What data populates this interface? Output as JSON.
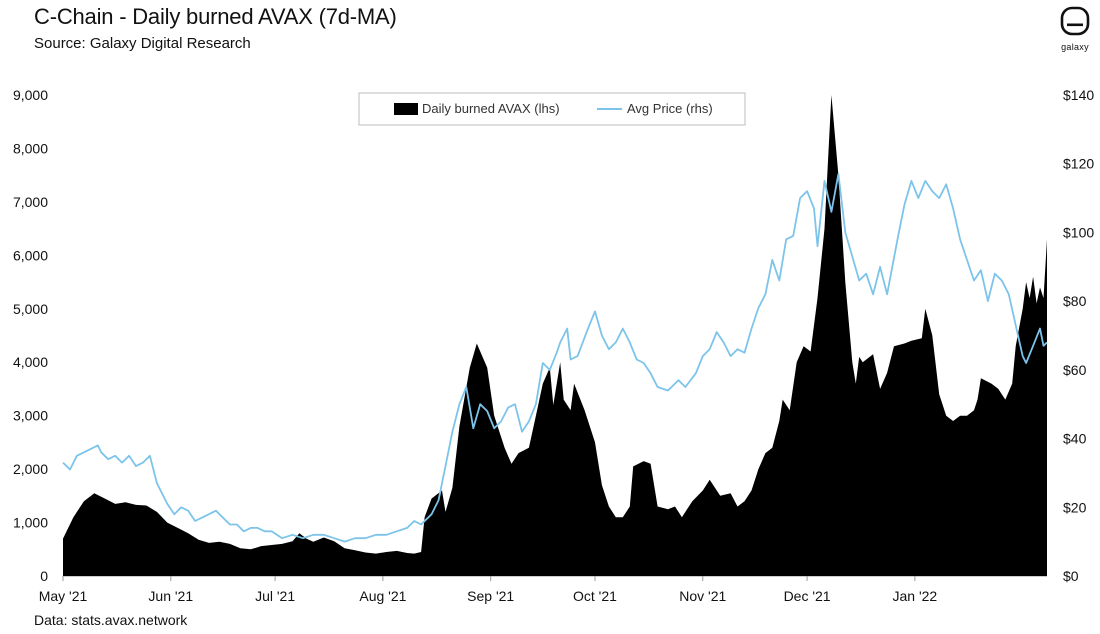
{
  "header": {
    "title": "C-Chain - Daily burned AVAX (7d-MA)",
    "subtitle": "Source: Galaxy Digital Research",
    "footer_source": "Data: stats.avax.network",
    "logo_label": "galaxy"
  },
  "colors": {
    "burned": "#000000",
    "price": "#7cc4ea",
    "axis": "#999999"
  },
  "chart_data": {
    "type": "area+line",
    "title": "C-Chain - Daily burned AVAX (7d-MA)",
    "x_range": [
      "2021-05-01",
      "2022-02-08"
    ],
    "x_ticks": [
      {
        "date": "2021-05-01",
        "label": "May '21"
      },
      {
        "date": "2021-06-01",
        "label": "Jun '21"
      },
      {
        "date": "2021-07-01",
        "label": "Jul '21"
      },
      {
        "date": "2021-08-01",
        "label": "Aug '21"
      },
      {
        "date": "2021-09-01",
        "label": "Sep '21"
      },
      {
        "date": "2021-10-01",
        "label": "Oct '21"
      },
      {
        "date": "2021-11-01",
        "label": "Nov '21"
      },
      {
        "date": "2021-12-01",
        "label": "Dec '21"
      },
      {
        "date": "2022-01-01",
        "label": "Jan '22"
      }
    ],
    "y_left": {
      "min": 0,
      "max": 9000,
      "ticks": [
        0,
        1000,
        2000,
        3000,
        4000,
        5000,
        6000,
        7000,
        8000,
        9000
      ],
      "tick_labels": [
        "0",
        "1,000",
        "2,000",
        "3,000",
        "4,000",
        "5,000",
        "6,000",
        "7,000",
        "8,000",
        "9,000"
      ]
    },
    "y_right": {
      "min": 0,
      "max": 140,
      "ticks": [
        0,
        20,
        40,
        60,
        80,
        100,
        120,
        140
      ],
      "tick_labels": [
        "$0",
        "$20",
        "$40",
        "$60",
        "$80",
        "$100",
        "$120",
        "$140"
      ]
    },
    "legend": {
      "position": "top-center"
    },
    "series": [
      {
        "name": "Daily burned AVAX (lhs)",
        "type": "area",
        "axis": "left",
        "points": [
          [
            "2021-05-01",
            700
          ],
          [
            "2021-05-04",
            1100
          ],
          [
            "2021-05-07",
            1400
          ],
          [
            "2021-05-10",
            1550
          ],
          [
            "2021-05-13",
            1450
          ],
          [
            "2021-05-16",
            1350
          ],
          [
            "2021-05-19",
            1380
          ],
          [
            "2021-05-22",
            1330
          ],
          [
            "2021-05-25",
            1320
          ],
          [
            "2021-05-28",
            1200
          ],
          [
            "2021-05-31",
            1000
          ],
          [
            "2021-06-03",
            900
          ],
          [
            "2021-06-06",
            800
          ],
          [
            "2021-06-09",
            680
          ],
          [
            "2021-06-12",
            620
          ],
          [
            "2021-06-15",
            640
          ],
          [
            "2021-06-18",
            600
          ],
          [
            "2021-06-21",
            520
          ],
          [
            "2021-06-24",
            500
          ],
          [
            "2021-06-27",
            560
          ],
          [
            "2021-06-30",
            580
          ],
          [
            "2021-07-03",
            600
          ],
          [
            "2021-07-06",
            650
          ],
          [
            "2021-07-08",
            800
          ],
          [
            "2021-07-10",
            700
          ],
          [
            "2021-07-12",
            640
          ],
          [
            "2021-07-15",
            720
          ],
          [
            "2021-07-18",
            650
          ],
          [
            "2021-07-21",
            520
          ],
          [
            "2021-07-24",
            480
          ],
          [
            "2021-07-27",
            440
          ],
          [
            "2021-07-30",
            420
          ],
          [
            "2021-08-02",
            450
          ],
          [
            "2021-08-05",
            470
          ],
          [
            "2021-08-08",
            430
          ],
          [
            "2021-08-10",
            420
          ],
          [
            "2021-08-12",
            450
          ],
          [
            "2021-08-13",
            1100
          ],
          [
            "2021-08-15",
            1450
          ],
          [
            "2021-08-18",
            1600
          ],
          [
            "2021-08-19",
            1200
          ],
          [
            "2021-08-21",
            1650
          ],
          [
            "2021-08-23",
            2800
          ],
          [
            "2021-08-26",
            3900
          ],
          [
            "2021-08-28",
            4350
          ],
          [
            "2021-08-31",
            3900
          ],
          [
            "2021-09-02",
            3000
          ],
          [
            "2021-09-05",
            2400
          ],
          [
            "2021-09-07",
            2100
          ],
          [
            "2021-09-09",
            2300
          ],
          [
            "2021-09-12",
            2400
          ],
          [
            "2021-09-14",
            3000
          ],
          [
            "2021-09-16",
            3600
          ],
          [
            "2021-09-18",
            3900
          ],
          [
            "2021-09-19",
            3200
          ],
          [
            "2021-09-21",
            4000
          ],
          [
            "2021-09-22",
            3300
          ],
          [
            "2021-09-24",
            3100
          ],
          [
            "2021-09-25",
            3600
          ],
          [
            "2021-09-28",
            3100
          ],
          [
            "2021-10-01",
            2500
          ],
          [
            "2021-10-03",
            1700
          ],
          [
            "2021-10-05",
            1300
          ],
          [
            "2021-10-07",
            1100
          ],
          [
            "2021-10-09",
            1100
          ],
          [
            "2021-10-11",
            1300
          ],
          [
            "2021-10-12",
            2050
          ],
          [
            "2021-10-15",
            2150
          ],
          [
            "2021-10-17",
            2100
          ],
          [
            "2021-10-19",
            1300
          ],
          [
            "2021-10-22",
            1250
          ],
          [
            "2021-10-24",
            1300
          ],
          [
            "2021-10-26",
            1100
          ],
          [
            "2021-10-29",
            1400
          ],
          [
            "2021-11-01",
            1600
          ],
          [
            "2021-11-03",
            1800
          ],
          [
            "2021-11-06",
            1500
          ],
          [
            "2021-11-09",
            1550
          ],
          [
            "2021-11-11",
            1300
          ],
          [
            "2021-11-13",
            1400
          ],
          [
            "2021-11-15",
            1600
          ],
          [
            "2021-11-17",
            2000
          ],
          [
            "2021-11-19",
            2300
          ],
          [
            "2021-11-21",
            2400
          ],
          [
            "2021-11-23",
            2900
          ],
          [
            "2021-11-24",
            3300
          ],
          [
            "2021-11-26",
            3100
          ],
          [
            "2021-11-28",
            4000
          ],
          [
            "2021-11-30",
            4300
          ],
          [
            "2021-12-02",
            4200
          ],
          [
            "2021-12-04",
            5200
          ],
          [
            "2021-12-06",
            6500
          ],
          [
            "2021-12-08",
            9000
          ],
          [
            "2021-12-10",
            7500
          ],
          [
            "2021-12-12",
            5500
          ],
          [
            "2021-12-14",
            4000
          ],
          [
            "2021-12-15",
            3600
          ],
          [
            "2021-12-16",
            4100
          ],
          [
            "2021-12-17",
            4000
          ],
          [
            "2021-12-20",
            4150
          ],
          [
            "2021-12-22",
            3500
          ],
          [
            "2021-12-24",
            3800
          ],
          [
            "2021-12-26",
            4300
          ],
          [
            "2021-12-29",
            4350
          ],
          [
            "2021-12-31",
            4400
          ],
          [
            "2022-01-03",
            4450
          ],
          [
            "2022-01-04",
            5000
          ],
          [
            "2022-01-06",
            4500
          ],
          [
            "2022-01-08",
            3400
          ],
          [
            "2022-01-10",
            3000
          ],
          [
            "2022-01-12",
            2900
          ],
          [
            "2022-01-14",
            3000
          ],
          [
            "2022-01-16",
            3000
          ],
          [
            "2022-01-18",
            3100
          ],
          [
            "2022-01-19",
            3300
          ],
          [
            "2022-01-20",
            3700
          ],
          [
            "2022-01-23",
            3600
          ],
          [
            "2022-01-25",
            3500
          ],
          [
            "2022-01-27",
            3300
          ],
          [
            "2022-01-29",
            3600
          ],
          [
            "2022-01-30",
            4300
          ],
          [
            "2022-02-01",
            5000
          ],
          [
            "2022-02-02",
            5500
          ],
          [
            "2022-02-03",
            5200
          ],
          [
            "2022-02-04",
            5600
          ],
          [
            "2022-02-05",
            5100
          ],
          [
            "2022-02-06",
            5400
          ],
          [
            "2022-02-07",
            5200
          ],
          [
            "2022-02-08",
            6300
          ]
        ]
      },
      {
        "name": "Avg Price (rhs)",
        "type": "line",
        "axis": "right",
        "points": [
          [
            "2021-05-01",
            33
          ],
          [
            "2021-05-03",
            31
          ],
          [
            "2021-05-05",
            35
          ],
          [
            "2021-05-07",
            36
          ],
          [
            "2021-05-09",
            37
          ],
          [
            "2021-05-11",
            38
          ],
          [
            "2021-05-12",
            36
          ],
          [
            "2021-05-14",
            34
          ],
          [
            "2021-05-16",
            35
          ],
          [
            "2021-05-18",
            33
          ],
          [
            "2021-05-20",
            35
          ],
          [
            "2021-05-22",
            32
          ],
          [
            "2021-05-24",
            33
          ],
          [
            "2021-05-26",
            35
          ],
          [
            "2021-05-28",
            27
          ],
          [
            "2021-05-31",
            21
          ],
          [
            "2021-06-02",
            18
          ],
          [
            "2021-06-04",
            20
          ],
          [
            "2021-06-06",
            19
          ],
          [
            "2021-06-08",
            16
          ],
          [
            "2021-06-10",
            17
          ],
          [
            "2021-06-12",
            18
          ],
          [
            "2021-06-14",
            19
          ],
          [
            "2021-06-16",
            17
          ],
          [
            "2021-06-18",
            15
          ],
          [
            "2021-06-20",
            15
          ],
          [
            "2021-06-22",
            13
          ],
          [
            "2021-06-24",
            14
          ],
          [
            "2021-06-26",
            14
          ],
          [
            "2021-06-28",
            13
          ],
          [
            "2021-06-30",
            13
          ],
          [
            "2021-07-03",
            11
          ],
          [
            "2021-07-06",
            12
          ],
          [
            "2021-07-09",
            11
          ],
          [
            "2021-07-12",
            12
          ],
          [
            "2021-07-15",
            12
          ],
          [
            "2021-07-18",
            11
          ],
          [
            "2021-07-21",
            10
          ],
          [
            "2021-07-24",
            11
          ],
          [
            "2021-07-27",
            11
          ],
          [
            "2021-07-30",
            12
          ],
          [
            "2021-08-02",
            12
          ],
          [
            "2021-08-05",
            13
          ],
          [
            "2021-08-08",
            14
          ],
          [
            "2021-08-10",
            16
          ],
          [
            "2021-08-12",
            15
          ],
          [
            "2021-08-15",
            18
          ],
          [
            "2021-08-17",
            22
          ],
          [
            "2021-08-19",
            32
          ],
          [
            "2021-08-21",
            42
          ],
          [
            "2021-08-23",
            50
          ],
          [
            "2021-08-25",
            55
          ],
          [
            "2021-08-27",
            43
          ],
          [
            "2021-08-29",
            50
          ],
          [
            "2021-08-31",
            48
          ],
          [
            "2021-09-02",
            43
          ],
          [
            "2021-09-04",
            45
          ],
          [
            "2021-09-06",
            49
          ],
          [
            "2021-09-08",
            50
          ],
          [
            "2021-09-10",
            42
          ],
          [
            "2021-09-12",
            45
          ],
          [
            "2021-09-14",
            50
          ],
          [
            "2021-09-16",
            62
          ],
          [
            "2021-09-18",
            60
          ],
          [
            "2021-09-20",
            65
          ],
          [
            "2021-09-21",
            68
          ],
          [
            "2021-09-23",
            72
          ],
          [
            "2021-09-24",
            63
          ],
          [
            "2021-09-26",
            64
          ],
          [
            "2021-09-29",
            72
          ],
          [
            "2021-10-01",
            77
          ],
          [
            "2021-10-03",
            70
          ],
          [
            "2021-10-05",
            66
          ],
          [
            "2021-10-07",
            68
          ],
          [
            "2021-10-09",
            72
          ],
          [
            "2021-10-11",
            68
          ],
          [
            "2021-10-13",
            63
          ],
          [
            "2021-10-15",
            62
          ],
          [
            "2021-10-17",
            59
          ],
          [
            "2021-10-19",
            55
          ],
          [
            "2021-10-22",
            54
          ],
          [
            "2021-10-25",
            57
          ],
          [
            "2021-10-27",
            55
          ],
          [
            "2021-10-30",
            59
          ],
          [
            "2021-11-01",
            64
          ],
          [
            "2021-11-03",
            66
          ],
          [
            "2021-11-05",
            71
          ],
          [
            "2021-11-07",
            68
          ],
          [
            "2021-11-09",
            64
          ],
          [
            "2021-11-11",
            66
          ],
          [
            "2021-11-13",
            65
          ],
          [
            "2021-11-15",
            72
          ],
          [
            "2021-11-17",
            78
          ],
          [
            "2021-11-19",
            82
          ],
          [
            "2021-11-21",
            92
          ],
          [
            "2021-11-23",
            86
          ],
          [
            "2021-11-25",
            98
          ],
          [
            "2021-11-27",
            99
          ],
          [
            "2021-11-29",
            110
          ],
          [
            "2021-12-01",
            112
          ],
          [
            "2021-12-03",
            107
          ],
          [
            "2021-12-04",
            96
          ],
          [
            "2021-12-06",
            115
          ],
          [
            "2021-12-08",
            106
          ],
          [
            "2021-12-10",
            117
          ],
          [
            "2021-12-12",
            100
          ],
          [
            "2021-12-14",
            93
          ],
          [
            "2021-12-16",
            86
          ],
          [
            "2021-12-18",
            88
          ],
          [
            "2021-12-20",
            82
          ],
          [
            "2021-12-22",
            90
          ],
          [
            "2021-12-24",
            82
          ],
          [
            "2021-12-27",
            98
          ],
          [
            "2021-12-29",
            108
          ],
          [
            "2021-12-31",
            115
          ],
          [
            "2022-01-02",
            110
          ],
          [
            "2022-01-04",
            115
          ],
          [
            "2022-01-06",
            112
          ],
          [
            "2022-01-08",
            110
          ],
          [
            "2022-01-10",
            114
          ],
          [
            "2022-01-12",
            107
          ],
          [
            "2022-01-14",
            98
          ],
          [
            "2022-01-16",
            92
          ],
          [
            "2022-01-18",
            86
          ],
          [
            "2022-01-20",
            89
          ],
          [
            "2022-01-22",
            80
          ],
          [
            "2022-01-24",
            88
          ],
          [
            "2022-01-26",
            86
          ],
          [
            "2022-01-28",
            82
          ],
          [
            "2022-01-30",
            73
          ],
          [
            "2022-02-01",
            64
          ],
          [
            "2022-02-02",
            62
          ],
          [
            "2022-02-04",
            67
          ],
          [
            "2022-02-06",
            72
          ],
          [
            "2022-02-07",
            67
          ],
          [
            "2022-02-08",
            68
          ]
        ]
      }
    ]
  }
}
